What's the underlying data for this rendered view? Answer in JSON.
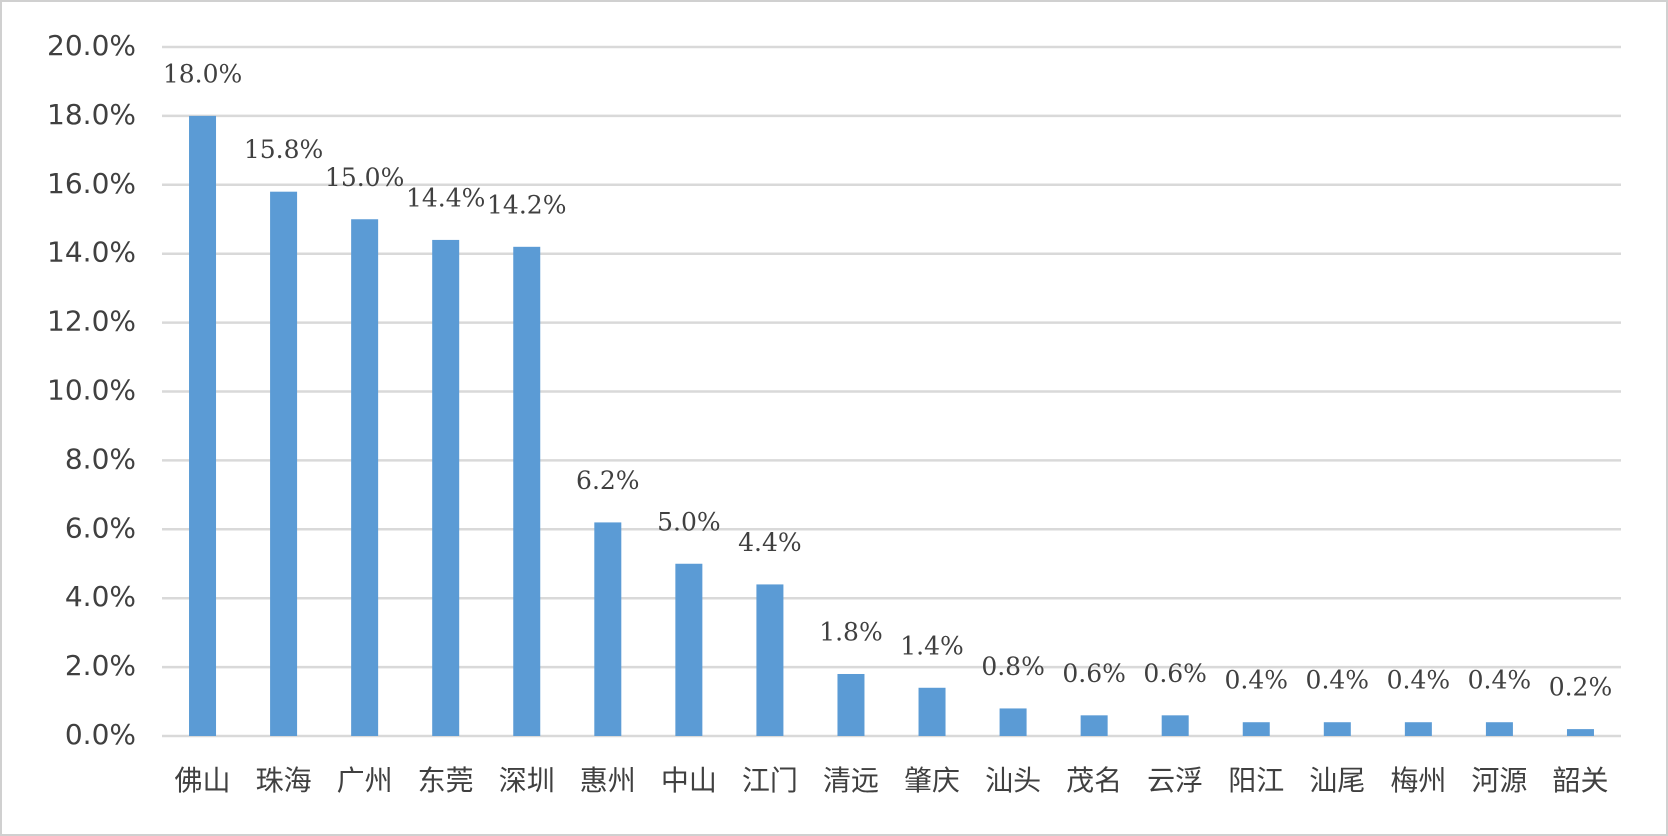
{
  "chart_data": {
    "type": "bar",
    "categories": [
      "佛山",
      "珠海",
      "广州",
      "东莞",
      "深圳",
      "惠州",
      "中山",
      "江门",
      "清远",
      "肇庆",
      "汕头",
      "茂名",
      "云浮",
      "阳江",
      "汕尾",
      "梅州",
      "河源",
      "韶关"
    ],
    "values": [
      18.0,
      15.8,
      15.0,
      14.4,
      14.2,
      6.2,
      5.0,
      4.4,
      1.8,
      1.4,
      0.8,
      0.6,
      0.6,
      0.4,
      0.4,
      0.4,
      0.4,
      0.2
    ],
    "value_labels": [
      "18.0%",
      "15.8%",
      "15.0%",
      "14.4%",
      "14.2%",
      "6.2%",
      "5.0%",
      "4.4%",
      "1.8%",
      "1.4%",
      "0.8%",
      "0.6%",
      "0.6%",
      "0.4%",
      "0.4%",
      "0.4%",
      "0.4%",
      "0.2%"
    ],
    "color": "#5b9bd5",
    "ylim": [
      0,
      20
    ],
    "yticks": [
      {
        "value": 0,
        "label": "0.0%"
      },
      {
        "value": 2,
        "label": "2.0%"
      },
      {
        "value": 4,
        "label": "4.0%"
      },
      {
        "value": 6,
        "label": "6.0%"
      },
      {
        "value": 8,
        "label": "8.0%"
      },
      {
        "value": 10,
        "label": "10.0%"
      },
      {
        "value": 12,
        "label": "12.0%"
      },
      {
        "value": 14,
        "label": "14.0%"
      },
      {
        "value": 16,
        "label": "16.0%"
      },
      {
        "value": 18,
        "label": "18.0%"
      },
      {
        "value": 20,
        "label": "20.0%"
      }
    ],
    "grid": true
  }
}
